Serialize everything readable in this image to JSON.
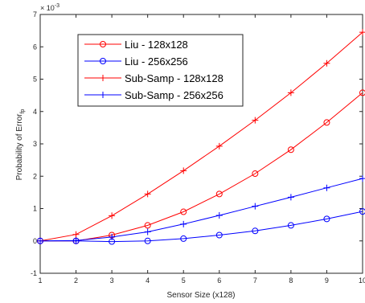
{
  "chart_data": {
    "type": "line",
    "title": "",
    "xlabel": "Sensor Size (x128)",
    "ylabel": "Probability of Error",
    "ylabel_subscript": "fp",
    "y_exponent": "× 10",
    "y_exponent_power": "-3",
    "x": [
      1,
      2,
      3,
      4,
      5,
      6,
      7,
      8,
      9,
      10
    ],
    "xlim": [
      1,
      10
    ],
    "ylim": [
      -1,
      7
    ],
    "xticks": [
      "1",
      "2",
      "3",
      "4",
      "5",
      "6",
      "7",
      "8",
      "9",
      "10"
    ],
    "yticks": [
      "-1",
      "0",
      "1",
      "2",
      "3",
      "4",
      "5",
      "6",
      "7"
    ],
    "grid": false,
    "legend_position": "top-left",
    "series": [
      {
        "name": "Liu - 128x128",
        "color": "#ff0000",
        "marker": "circle",
        "values": [
          0,
          0,
          0.18,
          0.48,
          0.9,
          1.45,
          2.08,
          2.82,
          3.66,
          4.58
        ]
      },
      {
        "name": "Liu - 256x256",
        "color": "#0000ff",
        "marker": "circle",
        "values": [
          0,
          0,
          -0.02,
          0.0,
          0.07,
          0.18,
          0.31,
          0.48,
          0.68,
          0.91
        ]
      },
      {
        "name": "Sub-Samp - 128x128",
        "color": "#ff0000",
        "marker": "plus",
        "values": [
          0,
          0.2,
          0.78,
          1.45,
          2.17,
          2.93,
          3.73,
          4.58,
          5.49,
          6.45
        ]
      },
      {
        "name": "Sub-Samp - 256x256",
        "color": "#0000ff",
        "marker": "plus",
        "values": [
          0,
          0.01,
          0.12,
          0.28,
          0.52,
          0.79,
          1.07,
          1.35,
          1.64,
          1.93
        ]
      }
    ]
  }
}
